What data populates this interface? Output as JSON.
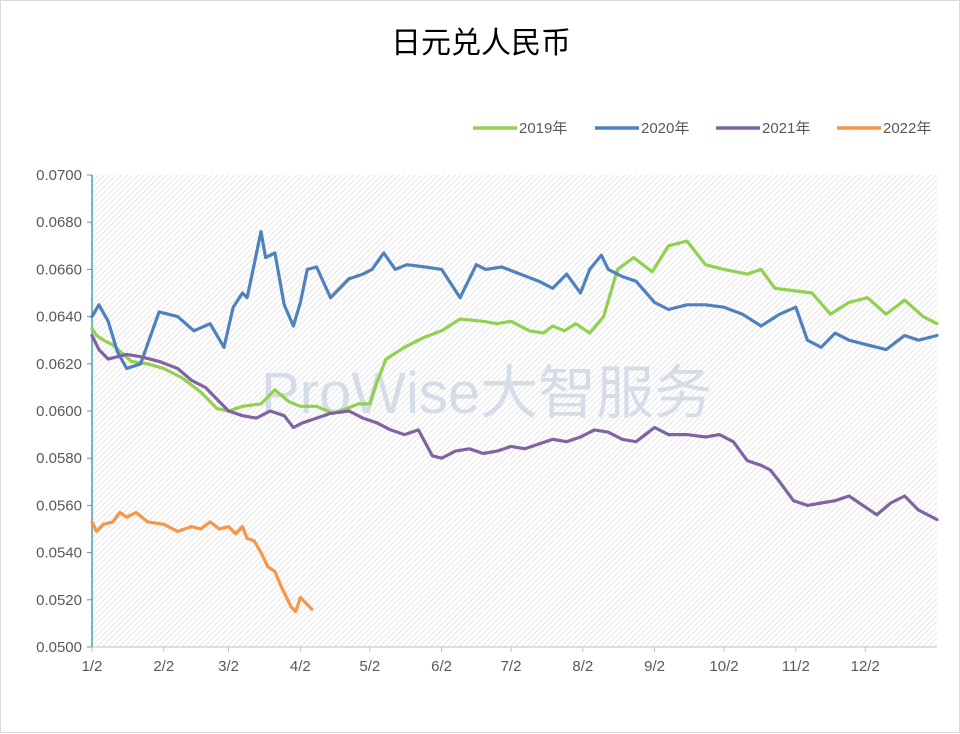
{
  "chart_data": {
    "type": "line",
    "title": "日元兑人民币",
    "xlabel": "",
    "ylabel": "",
    "ylim": [
      0.05,
      0.07
    ],
    "y_ticks": [
      "0.0500",
      "0.0520",
      "0.0540",
      "0.0560",
      "0.0580",
      "0.0600",
      "0.0620",
      "0.0640",
      "0.0660",
      "0.0680",
      "0.0700"
    ],
    "y_tick_values": [
      0.05,
      0.052,
      0.054,
      0.056,
      0.058,
      0.06,
      0.062,
      0.064,
      0.066,
      0.068,
      0.07
    ],
    "x_ticks": [
      "1/2",
      "2/2",
      "3/2",
      "4/2",
      "5/2",
      "6/2",
      "7/2",
      "8/2",
      "9/2",
      "10/2",
      "11/2",
      "12/2"
    ],
    "x_tick_days": [
      1,
      32,
      60,
      91,
      121,
      152,
      182,
      213,
      244,
      274,
      305,
      335
    ],
    "x_unit": "day of year",
    "xlim": [
      1,
      366
    ],
    "grid": false,
    "legend_position": "top-right",
    "watermark": "ProWise大智服务",
    "series": [
      {
        "name": "2019年",
        "color": "#92d050",
        "x": [
          1,
          3,
          6,
          10,
          18,
          25,
          32,
          40,
          48,
          55,
          60,
          66,
          74,
          80,
          86,
          91,
          98,
          105,
          111,
          116,
          121,
          124,
          128,
          136,
          144,
          152,
          160,
          170,
          176,
          182,
          190,
          196,
          200,
          205,
          210,
          216,
          222,
          228,
          235,
          243,
          250,
          258,
          266,
          274,
          284,
          290,
          296,
          304,
          312,
          320,
          328,
          336,
          344,
          352,
          360,
          366
        ],
        "y": [
          0.0635,
          0.0632,
          0.063,
          0.0628,
          0.0621,
          0.062,
          0.0618,
          0.0614,
          0.0608,
          0.0601,
          0.06,
          0.0602,
          0.0603,
          0.0609,
          0.0604,
          0.0602,
          0.0602,
          0.0599,
          0.0601,
          0.0603,
          0.0603,
          0.0612,
          0.0622,
          0.0627,
          0.0631,
          0.0634,
          0.0639,
          0.0638,
          0.0637,
          0.0638,
          0.0634,
          0.0633,
          0.0636,
          0.0634,
          0.0637,
          0.0633,
          0.064,
          0.066,
          0.0665,
          0.0659,
          0.067,
          0.0672,
          0.0662,
          0.066,
          0.0658,
          0.066,
          0.0652,
          0.0651,
          0.065,
          0.0641,
          0.0646,
          0.0648,
          0.0641,
          0.0647,
          0.064,
          0.0637
        ]
      },
      {
        "name": "2020年",
        "color": "#4f81bd",
        "x": [
          1,
          4,
          8,
          12,
          16,
          22,
          30,
          38,
          45,
          52,
          58,
          62,
          66,
          68,
          71,
          74,
          76,
          80,
          84,
          88,
          91,
          94,
          98,
          104,
          112,
          118,
          122,
          127,
          132,
          137,
          145,
          152,
          160,
          167,
          171,
          178,
          186,
          194,
          200,
          206,
          212,
          216,
          221,
          224,
          230,
          236,
          244,
          250,
          258,
          266,
          274,
          282,
          290,
          298,
          305,
          310,
          316,
          322,
          328,
          336,
          344,
          352,
          358,
          366
        ],
        "y": [
          0.064,
          0.0645,
          0.0638,
          0.0625,
          0.0618,
          0.062,
          0.0642,
          0.064,
          0.0634,
          0.0637,
          0.0627,
          0.0644,
          0.065,
          0.0648,
          0.0662,
          0.0676,
          0.0665,
          0.0667,
          0.0645,
          0.0636,
          0.0646,
          0.066,
          0.0661,
          0.0648,
          0.0656,
          0.0658,
          0.066,
          0.0667,
          0.066,
          0.0662,
          0.0661,
          0.066,
          0.0648,
          0.0662,
          0.066,
          0.0661,
          0.0658,
          0.0655,
          0.0652,
          0.0658,
          0.065,
          0.066,
          0.0666,
          0.066,
          0.0657,
          0.0655,
          0.0646,
          0.0643,
          0.0645,
          0.0645,
          0.0644,
          0.0641,
          0.0636,
          0.0641,
          0.0644,
          0.063,
          0.0627,
          0.0633,
          0.063,
          0.0628,
          0.0626,
          0.0632,
          0.063,
          0.0632
        ]
      },
      {
        "name": "2021年",
        "color": "#8064a2",
        "x": [
          1,
          4,
          8,
          12,
          16,
          22,
          30,
          38,
          44,
          50,
          55,
          60,
          66,
          72,
          78,
          84,
          88,
          92,
          98,
          104,
          112,
          118,
          124,
          130,
          136,
          142,
          148,
          152,
          158,
          164,
          170,
          176,
          182,
          188,
          194,
          200,
          206,
          212,
          218,
          224,
          230,
          236,
          244,
          250,
          258,
          266,
          272,
          278,
          284,
          290,
          294,
          298,
          304,
          310,
          316,
          322,
          328,
          334,
          340,
          346,
          352,
          358,
          366
        ],
        "y": [
          0.0632,
          0.0626,
          0.0622,
          0.0623,
          0.0624,
          0.0623,
          0.0621,
          0.0618,
          0.0613,
          0.061,
          0.0605,
          0.06,
          0.0598,
          0.0597,
          0.06,
          0.0598,
          0.0593,
          0.0595,
          0.0597,
          0.0599,
          0.06,
          0.0597,
          0.0595,
          0.0592,
          0.059,
          0.0592,
          0.0581,
          0.058,
          0.0583,
          0.0584,
          0.0582,
          0.0583,
          0.0585,
          0.0584,
          0.0586,
          0.0588,
          0.0587,
          0.0589,
          0.0592,
          0.0591,
          0.0588,
          0.0587,
          0.0593,
          0.059,
          0.059,
          0.0589,
          0.059,
          0.0587,
          0.0579,
          0.0577,
          0.0575,
          0.057,
          0.0562,
          0.056,
          0.0561,
          0.0562,
          0.0564,
          0.056,
          0.0556,
          0.0561,
          0.0564,
          0.0558,
          0.0554
        ]
      },
      {
        "name": "2022年",
        "color": "#f79646",
        "x": [
          1,
          3,
          6,
          10,
          13,
          16,
          20,
          25,
          32,
          38,
          44,
          48,
          52,
          56,
          60,
          63,
          66,
          68,
          71,
          74,
          77,
          80,
          83,
          85,
          87,
          89,
          91,
          93,
          96
        ],
        "y": [
          0.0553,
          0.0549,
          0.0552,
          0.0553,
          0.0557,
          0.0555,
          0.0557,
          0.0553,
          0.0552,
          0.0549,
          0.0551,
          0.055,
          0.0553,
          0.055,
          0.0551,
          0.0548,
          0.0551,
          0.0546,
          0.0545,
          0.054,
          0.0534,
          0.0532,
          0.0525,
          0.0521,
          0.0517,
          0.0515,
          0.0521,
          0.0519,
          0.0516
        ]
      }
    ]
  }
}
